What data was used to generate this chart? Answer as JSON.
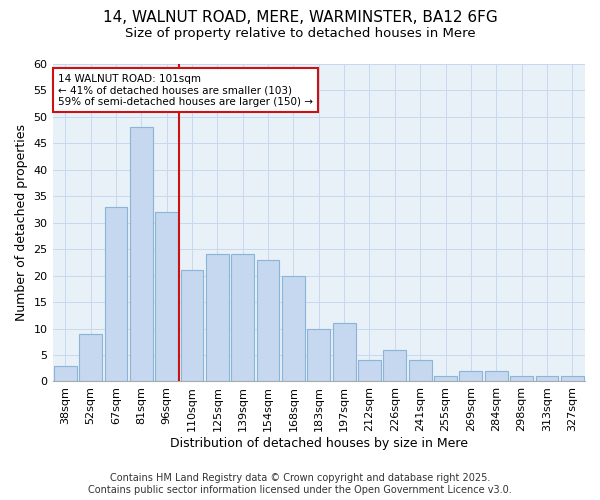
{
  "title1": "14, WALNUT ROAD, MERE, WARMINSTER, BA12 6FG",
  "title2": "Size of property relative to detached houses in Mere",
  "xlabel": "Distribution of detached houses by size in Mere",
  "ylabel": "Number of detached properties",
  "categories": [
    "38sqm",
    "52sqm",
    "67sqm",
    "81sqm",
    "96sqm",
    "110sqm",
    "125sqm",
    "139sqm",
    "154sqm",
    "168sqm",
    "183sqm",
    "197sqm",
    "212sqm",
    "226sqm",
    "241sqm",
    "255sqm",
    "269sqm",
    "284sqm",
    "298sqm",
    "313sqm",
    "327sqm"
  ],
  "values": [
    3,
    9,
    33,
    48,
    32,
    21,
    24,
    24,
    23,
    20,
    10,
    11,
    4,
    6,
    4,
    1,
    2,
    2,
    1,
    1,
    1
  ],
  "bar_color": "#c5d8ef",
  "bar_edge_color": "#8ab4d8",
  "grid_color": "#c8d8ee",
  "plot_bg_color": "#e8f0f8",
  "figure_bg_color": "#ffffff",
  "vline_x": 4.5,
  "vline_color": "#cc1111",
  "annotation_line1": "14 WALNUT ROAD: 101sqm",
  "annotation_line2": "← 41% of detached houses are smaller (103)",
  "annotation_line3": "59% of semi-detached houses are larger (150) →",
  "annotation_box_color": "#ffffff",
  "annotation_box_edge": "#cc1111",
  "footer": "Contains HM Land Registry data © Crown copyright and database right 2025.\nContains public sector information licensed under the Open Government Licence v3.0.",
  "ylim": [
    0,
    60
  ],
  "yticks": [
    0,
    5,
    10,
    15,
    20,
    25,
    30,
    35,
    40,
    45,
    50,
    55,
    60
  ],
  "title1_fontsize": 11,
  "title2_fontsize": 9.5,
  "xlabel_fontsize": 9,
  "ylabel_fontsize": 9,
  "tick_fontsize": 8,
  "footer_fontsize": 7
}
